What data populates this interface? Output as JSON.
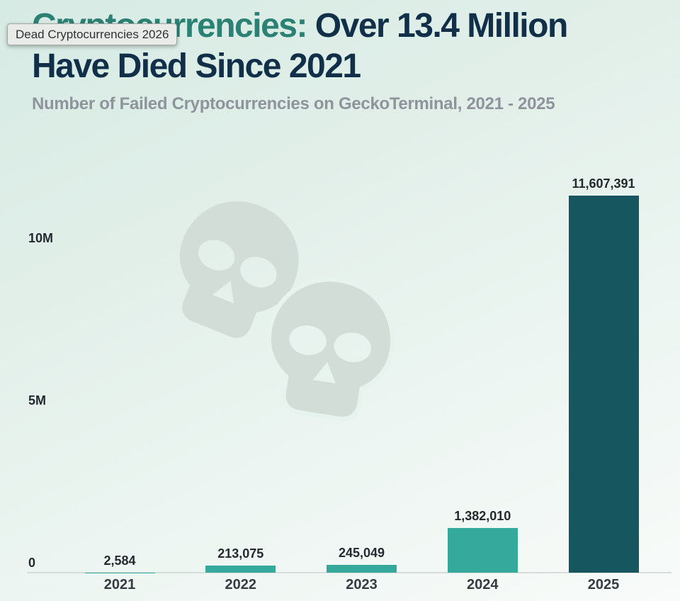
{
  "tooltip": {
    "text": "Dead Cryptocurrencies 2026"
  },
  "header": {
    "title_highlight": "Cryptocurrencies:",
    "title_rest_line1": " Over 13.4 Million",
    "title_line2": "Have Died Since 2021",
    "subtitle": "Number of Failed Cryptocurrencies on GeckoTerminal, 2021 - 2025"
  },
  "chart_data": {
    "type": "bar",
    "title": "Cryptocurrencies: Over 13.4 Million Have Died Since 2021",
    "subtitle": "Number of Failed Cryptocurrencies on GeckoTerminal, 2021 - 2025",
    "categories": [
      "2021",
      "2022",
      "2023",
      "2024",
      "2025"
    ],
    "values": [
      2584,
      213075,
      245049,
      1382010,
      11607391
    ],
    "value_labels": [
      "2,584",
      "213,075",
      "245,049",
      "1,382,010",
      "11,607,391"
    ],
    "bar_colors": [
      "#35a99c",
      "#35a99c",
      "#35a99c",
      "#35a99c",
      "#16565f"
    ],
    "xlabel": "",
    "ylabel": "",
    "yticks": [
      {
        "value": 0,
        "label": "0"
      },
      {
        "value": 5000000,
        "label": "5M"
      },
      {
        "value": 10000000,
        "label": "10M"
      }
    ],
    "ylim": [
      0,
      11800000
    ],
    "grid": false,
    "legend": false
  },
  "colors": {
    "background_top": "#d6ebe4",
    "background_bottom": "#f8fbf9",
    "title_accent": "#2a8174",
    "title_main": "#112f49",
    "subtitle": "#8e939c",
    "bar_teal": "#35a99c",
    "bar_dark": "#16565f",
    "axis_line": "#d7dddb",
    "label_dark": "#24282f",
    "watermark": "#d2ddd8",
    "watermark_halo": "#e7f3ee",
    "tooltip_bg": "#e9ebe8",
    "tooltip_border": "#a3a6a3"
  },
  "watermark": {
    "icon": "skull-icon",
    "count": 2
  }
}
